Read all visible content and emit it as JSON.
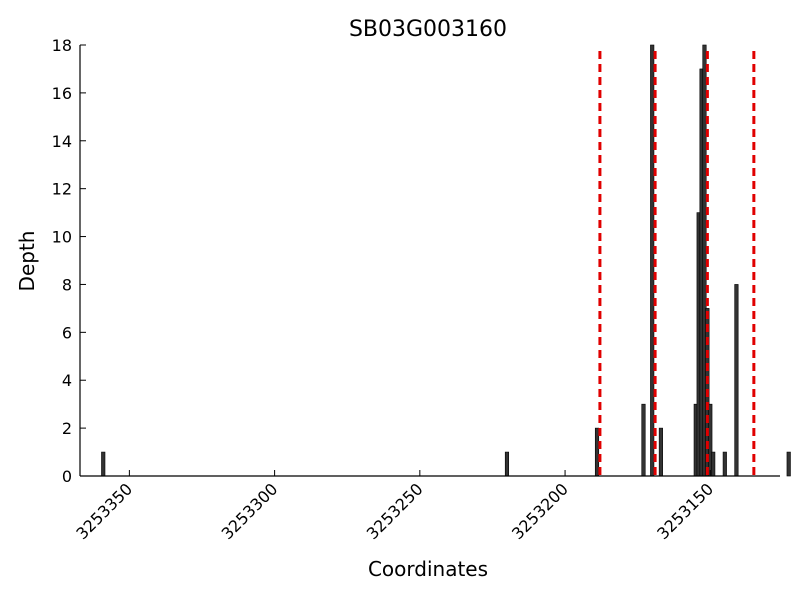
{
  "chart_data": {
    "type": "bar",
    "title": "SB03G003160",
    "xlabel": "Coordinates",
    "ylabel": "Depth",
    "x_inverted": true,
    "xlim": [
      3253367,
      3253126
    ],
    "ylim": [
      0,
      18
    ],
    "xticks": [
      3253350,
      3253300,
      3253250,
      3253200,
      3253150
    ],
    "yticks": [
      0,
      2,
      4,
      6,
      8,
      10,
      12,
      14,
      16,
      18
    ],
    "grid": false,
    "bar_color": "#333333",
    "series": [
      {
        "x": [
          3253359,
          3253220,
          3253189,
          3253173,
          3253170,
          3253167,
          3253155,
          3253154,
          3253153,
          3253152,
          3253151,
          3253150,
          3253149,
          3253145,
          3253141,
          3253123
        ],
        "values": [
          1,
          1,
          2,
          3,
          18,
          2,
          3,
          11,
          17,
          18,
          7,
          3,
          1,
          1,
          8,
          1
        ]
      }
    ],
    "reference_lines": {
      "x": [
        3253188,
        3253169,
        3253151,
        3253135
      ],
      "color": "#e00000",
      "style": "dashed"
    }
  }
}
